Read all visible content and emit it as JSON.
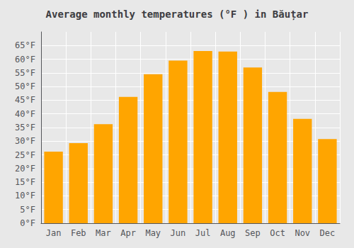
{
  "chart_data": {
    "type": "bar",
    "title": "Average monthly temperatures (°F ) in Băuțar",
    "categories": [
      "Jan",
      "Feb",
      "Mar",
      "Apr",
      "May",
      "Jun",
      "Jul",
      "Aug",
      "Sep",
      "Oct",
      "Nov",
      "Dec"
    ],
    "values": [
      26.2,
      29.3,
      36.2,
      46.2,
      54.5,
      59.5,
      63.0,
      62.8,
      57.0,
      48.0,
      38.2,
      30.8
    ],
    "color": "#FFA500",
    "ylim": [
      0,
      70
    ],
    "yticks": [
      {
        "value": 0,
        "label": "0°F"
      },
      {
        "value": 5,
        "label": "5°F"
      },
      {
        "value": 10,
        "label": "10°F"
      },
      {
        "value": 15,
        "label": "15°F"
      },
      {
        "value": 20,
        "label": "20°F"
      },
      {
        "value": 25,
        "label": "25°F"
      },
      {
        "value": 30,
        "label": "30°F"
      },
      {
        "value": 35,
        "label": "35°F"
      },
      {
        "value": 40,
        "label": "40°F"
      },
      {
        "value": 45,
        "label": "45°F"
      },
      {
        "value": 50,
        "label": "50°F"
      },
      {
        "value": 55,
        "label": "55°F"
      },
      {
        "value": 60,
        "label": "60°F"
      },
      {
        "value": 65,
        "label": "65°F"
      }
    ],
    "grid": true
  }
}
